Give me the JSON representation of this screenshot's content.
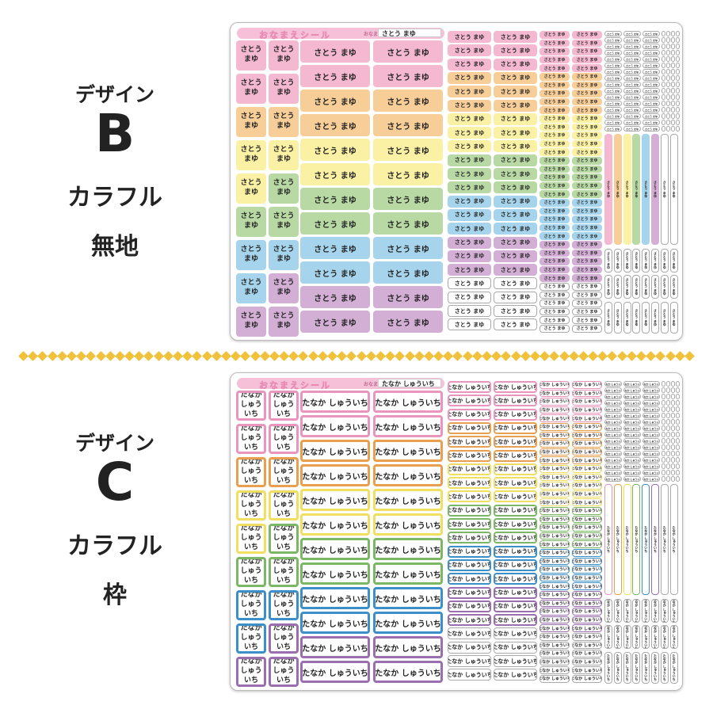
{
  "designB": {
    "top": "デザイン",
    "letter": "B",
    "line1": "カラフル",
    "line2": "無地",
    "sheet_title": "おなまえシール",
    "name_label": "おなまえ",
    "name": "さとう まゆ",
    "name_split": "さとう\nまゆ"
  },
  "designC": {
    "top": "デザイン",
    "letter": "C",
    "line1": "カラフル",
    "line2": "枠",
    "sheet_title": "おなまえシール",
    "name_label": "おなまえ",
    "name": "たなか しゅういち",
    "name_split": "たなか\nしゅういち"
  },
  "palette": [
    "#f4b8d0",
    "#f7cd98",
    "#fbf1a4",
    "#b8d9a4",
    "#a6d4ec",
    "#d3afd6"
  ],
  "frame_palette": [
    "#e995bd",
    "#e8a050",
    "#f0df60",
    "#7cb765",
    "#3d8fc9",
    "#9b6eb0"
  ]
}
